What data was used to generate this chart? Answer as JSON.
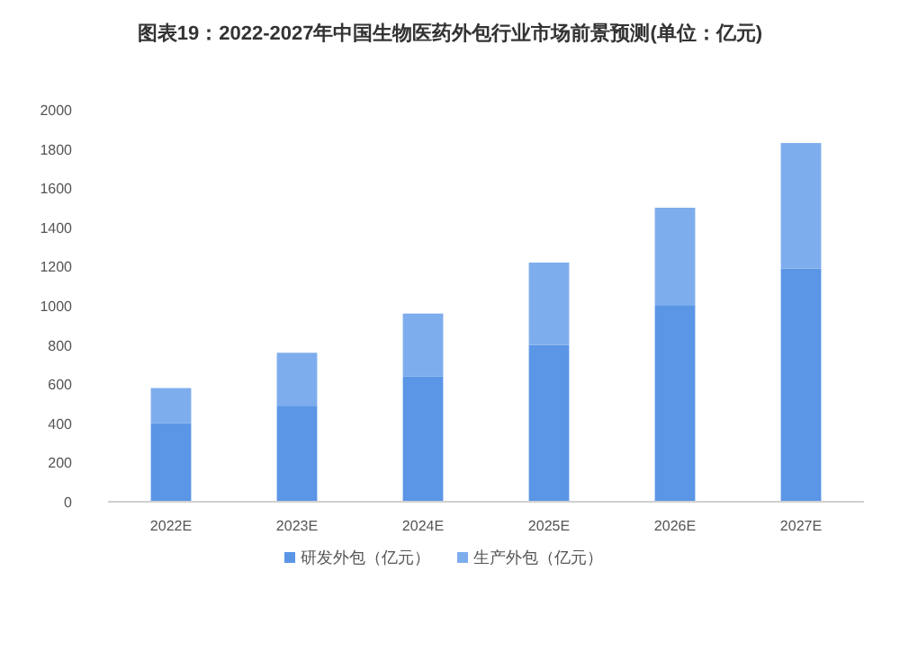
{
  "chart_data": {
    "type": "bar",
    "title": "图表19：2022-2027年中国生物医药外包行业市场前景预测(单位：亿元)",
    "categories": [
      "2022E",
      "2023E",
      "2024E",
      "2025E",
      "2026E",
      "2027E"
    ],
    "stacked": true,
    "series": [
      {
        "name": "研发外包（亿元）",
        "color": "#5b96e6",
        "values": [
          400,
          490,
          640,
          800,
          1000,
          1190
        ]
      },
      {
        "name": "生产外包（亿元）",
        "color": "#7eaded",
        "values": [
          180,
          270,
          320,
          420,
          500,
          640
        ]
      }
    ],
    "ylim": [
      0,
      2000
    ],
    "yticks": [
      0,
      200,
      400,
      600,
      800,
      1000,
      1200,
      1400,
      1600,
      1800,
      2000
    ],
    "grid": false,
    "legend": "bottom"
  }
}
